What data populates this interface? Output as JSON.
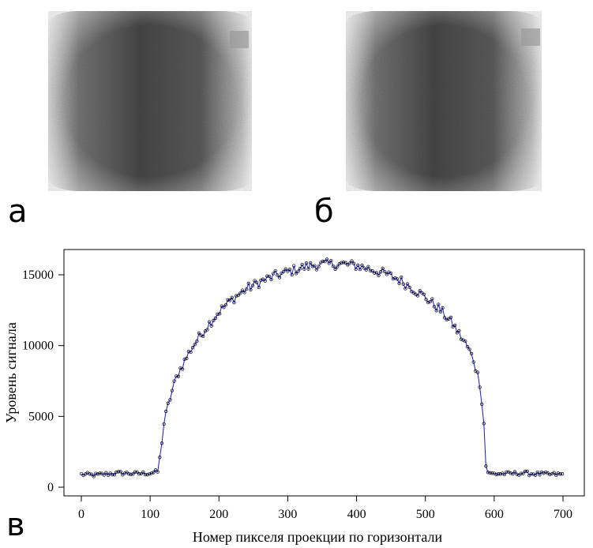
{
  "panels": {
    "a_label": "а",
    "b_label": "б",
    "c_label": "в"
  },
  "chart_data": {
    "type": "scatter",
    "xlabel": "Номер пикселя проекции по горизонтали",
    "ylabel": "Уровень сигнала",
    "xlim": [
      0,
      700
    ],
    "ylim": [
      0,
      16000
    ],
    "xticks": [
      "0",
      "100",
      "200",
      "300",
      "400",
      "500",
      "600",
      "700"
    ],
    "yticks": [
      "0",
      "5000",
      "10000",
      "15000"
    ],
    "grid": false,
    "series": [
      {
        "kind": "points",
        "marker": "open-circle",
        "color": "#000000"
      },
      {
        "kind": "line",
        "color": "#1a1acc"
      }
    ],
    "profile_points": [
      [
        0,
        900
      ],
      [
        20,
        850
      ],
      [
        40,
        950
      ],
      [
        60,
        1000
      ],
      [
        80,
        950
      ],
      [
        100,
        1000
      ],
      [
        112,
        1100
      ],
      [
        115,
        2500
      ],
      [
        120,
        4500
      ],
      [
        130,
        6500
      ],
      [
        140,
        8000
      ],
      [
        160,
        9800
      ],
      [
        180,
        11200
      ],
      [
        200,
        12400
      ],
      [
        220,
        13300
      ],
      [
        240,
        14000
      ],
      [
        260,
        14500
      ],
      [
        280,
        14900
      ],
      [
        300,
        15200
      ],
      [
        320,
        15500
      ],
      [
        340,
        15700
      ],
      [
        360,
        15750
      ],
      [
        380,
        15750
      ],
      [
        400,
        15650
      ],
      [
        420,
        15400
      ],
      [
        440,
        15100
      ],
      [
        460,
        14700
      ],
      [
        480,
        14100
      ],
      [
        500,
        13400
      ],
      [
        520,
        12600
      ],
      [
        540,
        11500
      ],
      [
        560,
        10000
      ],
      [
        570,
        9000
      ],
      [
        580,
        7200
      ],
      [
        585,
        4500
      ],
      [
        588,
        1500
      ],
      [
        592,
        950
      ],
      [
        620,
        950
      ],
      [
        640,
        1000
      ],
      [
        660,
        950
      ],
      [
        680,
        900
      ],
      [
        700,
        900
      ]
    ]
  }
}
